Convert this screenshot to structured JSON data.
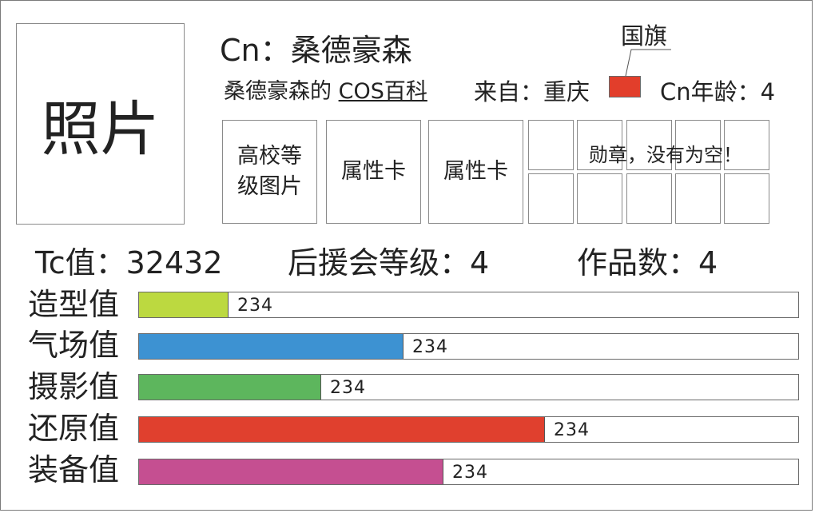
{
  "photo": {
    "label": "照片"
  },
  "profile": {
    "cn_label": "Cn：",
    "cn_name": "桑德豪森",
    "baike_prefix": "桑德豪森的",
    "baike_link": "COS百科",
    "from_label": "来自：",
    "from_value": "重庆",
    "flag_label": "国旗",
    "flag_color": "#e23e2b",
    "age_label": "Cn年龄：",
    "age_value": "4"
  },
  "cards": {
    "school_line1": "高校等",
    "school_line2": "级图片",
    "attr1": "属性卡",
    "attr2": "属性卡"
  },
  "medals": {
    "note": "勋章，没有为空！",
    "rows": 2,
    "cols": 5
  },
  "stats": {
    "tc_label": "Tc值：",
    "tc_value": "32432",
    "support_label": "后援会等级：",
    "support_value": "4",
    "works_label": "作品数：",
    "works_value": "4"
  },
  "bars": [
    {
      "label": "造型值",
      "value": "234",
      "fill": 0.135,
      "color": "#bcd940"
    },
    {
      "label": "气场值",
      "value": "234",
      "fill": 0.4,
      "color": "#3d92d2"
    },
    {
      "label": "摄影值",
      "value": "234",
      "fill": 0.275,
      "color": "#5db65d"
    },
    {
      "label": "还原值",
      "value": "234",
      "fill": 0.615,
      "color": "#e0402e"
    },
    {
      "label": "装备值",
      "value": "234",
      "fill": 0.46,
      "color": "#c54f91"
    }
  ]
}
